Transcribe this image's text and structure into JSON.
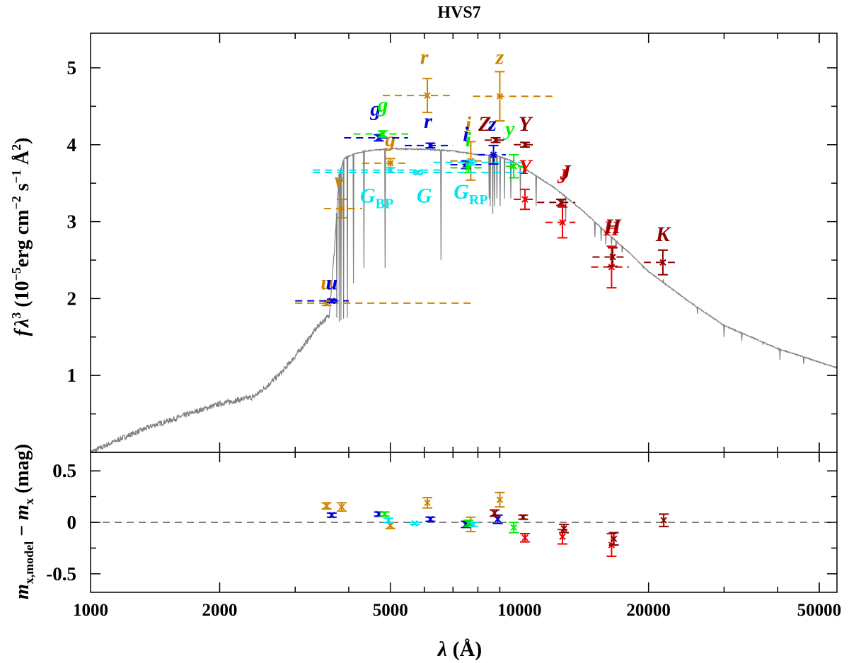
{
  "chart_data": [
    {
      "panel": "top",
      "type": "scatter",
      "title": "HVS7",
      "ylabel_parts": [
        "f",
        "λ",
        "3",
        " (10",
        "−5",
        "erg cm",
        "−2",
        " s",
        "−1",
        " Å",
        "2",
        ")"
      ],
      "xscale": "log",
      "xlim": [
        1000,
        55000
      ],
      "ylim": [
        0,
        5.45
      ],
      "yticks": [
        "1",
        "2",
        "3",
        "4",
        "5"
      ],
      "grid": false,
      "colors": {
        "sdss": "#cc8400",
        "panstarrs": "#0000dd",
        "vista": "#00ee00",
        "gaia": "#00e5ee",
        "ukidss": "#ee0000",
        "twomass": "#8b0000",
        "model": "#808080"
      },
      "model_spectrum": {
        "color": "#808080",
        "wavelength": [
          1000,
          1200,
          1400,
          1600,
          1800,
          2000,
          2200,
          2400,
          2600,
          2800,
          3000,
          3200,
          3400,
          3600,
          3700,
          3800,
          3900,
          4100,
          4400,
          5000,
          6000,
          7000,
          8000,
          8800,
          9500,
          10500,
          12000,
          14000,
          16000,
          18000,
          20000,
          25000,
          30000,
          40000,
          55000
        ],
        "flux": [
          0.0,
          0.2,
          0.35,
          0.45,
          0.55,
          0.63,
          0.68,
          0.72,
          0.88,
          1.05,
          1.25,
          1.45,
          1.65,
          1.78,
          2.6,
          3.62,
          3.82,
          3.88,
          3.92,
          3.95,
          3.94,
          3.92,
          3.87,
          3.86,
          3.8,
          3.66,
          3.45,
          3.15,
          2.85,
          2.6,
          2.35,
          1.95,
          1.65,
          1.35,
          1.1
        ],
        "absorption_lines": [
          [
            3750,
            1.75
          ],
          [
            3800,
            1.7
          ],
          [
            3835,
            1.72
          ],
          [
            3889,
            1.74
          ],
          [
            3970,
            1.75
          ],
          [
            4102,
            2.2
          ],
          [
            4340,
            2.4
          ],
          [
            4861,
            2.4
          ],
          [
            6563,
            2.5
          ],
          [
            8500,
            3.3
          ],
          [
            8545,
            3.2
          ],
          [
            8665,
            3.1
          ],
          [
            8750,
            3.2
          ],
          [
            8863,
            3.3
          ],
          [
            9015,
            3.2
          ],
          [
            9229,
            3.3
          ],
          [
            9546,
            3.3
          ],
          [
            10049,
            3.3
          ],
          [
            10938,
            3.2
          ],
          [
            12818,
            3.0
          ],
          [
            15000,
            2.8
          ],
          [
            15500,
            2.75
          ],
          [
            15900,
            2.7
          ],
          [
            16400,
            2.7
          ],
          [
            16800,
            2.65
          ],
          [
            17362,
            2.6
          ],
          [
            19450,
            2.4
          ],
          [
            21655,
            2.25
          ],
          [
            26000,
            1.8
          ],
          [
            30000,
            1.5
          ],
          [
            33000,
            1.45
          ],
          [
            37000,
            1.4
          ],
          [
            40500,
            1.2
          ],
          [
            46000,
            1.15
          ]
        ]
      },
      "photometry": [
        {
          "survey": "sdss",
          "band": "u",
          "wavelength": 3550,
          "flux": 1.94,
          "err": 0.03,
          "xmin": 3000,
          "xmax": 7800,
          "label": "u",
          "label_wl": 3550,
          "label_flux": 2.12
        },
        {
          "survey": "sdss",
          "band": "v",
          "wavelength": 3850,
          "flux": 3.17,
          "err": 0.12,
          "xmin": 3500,
          "xmax": 4300,
          "label": "v",
          "label_wl": 3800,
          "label_flux": 3.45
        },
        {
          "survey": "sdss",
          "band": "g",
          "wavelength": 5000,
          "flux": 3.76,
          "err": 0.06,
          "xmin": 4300,
          "xmax": 5500,
          "label": "g",
          "label_wl": 5000,
          "label_flux": 3.98
        },
        {
          "survey": "sdss",
          "band": "r",
          "wavelength": 6100,
          "flux": 4.64,
          "err": 0.22,
          "xmin": 4800,
          "xmax": 7000,
          "label": "r",
          "label_wl": 6000,
          "label_flux": 5.05
        },
        {
          "survey": "sdss",
          "band": "i",
          "wavelength": 7700,
          "flux": 3.79,
          "err": 0.25,
          "xmin": 6900,
          "xmax": 8300,
          "label": "i",
          "label_wl": 7600,
          "label_flux": 4.18
        },
        {
          "survey": "sdss",
          "band": "z",
          "wavelength": 9000,
          "flux": 4.63,
          "err": 0.32,
          "xmin": 7800,
          "xmax": 12000,
          "label": "z",
          "label_wl": 9000,
          "label_flux": 5.05
        },
        {
          "survey": "panstarrs",
          "band": "u",
          "wavelength": 3650,
          "flux": 1.97,
          "err": 0.02,
          "xmin": 3000,
          "xmax": 4000,
          "label": "u",
          "label_wl": 3650,
          "label_flux": 2.12
        },
        {
          "survey": "panstarrs",
          "band": "g",
          "wavelength": 4700,
          "flux": 4.09,
          "err": 0.04,
          "xmin": 3900,
          "xmax": 5500,
          "label": "g",
          "label_wl": 4620,
          "label_flux": 4.38
        },
        {
          "survey": "panstarrs",
          "band": "r",
          "wavelength": 6200,
          "flux": 3.99,
          "err": 0.03,
          "xmin": 5400,
          "xmax": 7000,
          "label": "r",
          "label_wl": 6120,
          "label_flux": 4.22
        },
        {
          "survey": "panstarrs",
          "band": "i",
          "wavelength": 7500,
          "flux": 3.74,
          "err": 0.05,
          "xmin": 6900,
          "xmax": 8300,
          "label": "i",
          "label_wl": 7500,
          "label_flux": 4.05
        },
        {
          "survey": "panstarrs",
          "band": "z",
          "wavelength": 8700,
          "flux": 3.87,
          "err": 0.12,
          "xmin": 8000,
          "xmax": 9300,
          "label": "z",
          "label_wl": 8650,
          "label_flux": 4.18
        },
        {
          "survey": "vista",
          "band": "g",
          "wavelength": 4800,
          "flux": 4.14,
          "err": 0.04,
          "xmin": 4100,
          "xmax": 5500,
          "label": "g",
          "label_wl": 4800,
          "label_flux": 4.43
        },
        {
          "survey": "vista",
          "band": "i",
          "wavelength": 7600,
          "flux": 3.7,
          "err": 0.06,
          "xmin": 6900,
          "xmax": 8300,
          "label": "i",
          "label_wl": 7600,
          "label_flux": 3.98
        },
        {
          "survey": "vista",
          "band": "y",
          "wavelength": 9700,
          "flux": 3.72,
          "err": 0.15,
          "xmin": 9300,
          "xmax": 10300,
          "label": "y",
          "label_wl": 9500,
          "label_flux": 4.12
        },
        {
          "survey": "gaia",
          "band": "G_BP",
          "wavelength": 5000,
          "flux": 3.67,
          "err": 0.03,
          "xmin": 3300,
          "xmax": 6600,
          "label": "G",
          "sub": "BP",
          "label_wl": 4650,
          "label_flux": 3.25
        },
        {
          "survey": "gaia",
          "band": "G",
          "wavelength": 5800,
          "flux": 3.64,
          "err": 0.02,
          "xmin": 3300,
          "xmax": 10500,
          "label": "G",
          "sub": "",
          "label_wl": 6000,
          "label_flux": 3.25
        },
        {
          "survey": "gaia",
          "band": "G_RP",
          "wavelength": 7700,
          "flux": 3.77,
          "err": 0.03,
          "xmin": 6300,
          "xmax": 10500,
          "label": "G",
          "sub": "RP",
          "label_wl": 7700,
          "label_flux": 3.3
        },
        {
          "survey": "ukidss",
          "band": "Y",
          "wavelength": 10300,
          "flux": 3.29,
          "err": 0.13,
          "xmin": 9700,
          "xmax": 11000,
          "label": "Y",
          "label_wl": 10300,
          "label_flux": 3.62
        },
        {
          "survey": "ukidss",
          "band": "J",
          "wavelength": 12600,
          "flux": 2.99,
          "err": 0.2,
          "xmin": 11500,
          "xmax": 13500,
          "label": "J",
          "label_wl": 12600,
          "label_flux": 3.5
        },
        {
          "survey": "ukidss",
          "band": "H",
          "wavelength": 16400,
          "flux": 2.41,
          "err": 0.27,
          "xmin": 14700,
          "xmax": 18000,
          "label": "H",
          "label_wl": 16400,
          "label_flux": 2.82
        },
        {
          "survey": "twomass",
          "band": "Z",
          "wavelength": 8800,
          "flux": 4.06,
          "err": 0.03,
          "xmin": 8300,
          "xmax": 9300,
          "label": "Z",
          "label_wl": 8300,
          "label_flux": 4.18
        },
        {
          "survey": "twomass",
          "band": "Y",
          "wavelength": 10300,
          "flux": 4.0,
          "err": 0.03,
          "xmin": 9700,
          "xmax": 10900,
          "label": "Y",
          "label_wl": 10300,
          "label_flux": 4.18
        },
        {
          "survey": "twomass",
          "band": "J",
          "wavelength": 12500,
          "flux": 3.25,
          "err": 0.04,
          "xmin": 11000,
          "xmax": 13500,
          "label": "J",
          "label_wl": 12800,
          "label_flux": 3.55
        },
        {
          "survey": "twomass",
          "band": "H",
          "wavelength": 16500,
          "flux": 2.54,
          "err": 0.12,
          "xmin": 14800,
          "xmax": 17800,
          "label": "H",
          "label_wl": 16500,
          "label_flux": 2.85
        },
        {
          "survey": "twomass",
          "band": "K",
          "wavelength": 21600,
          "flux": 2.47,
          "err": 0.16,
          "xmin": 19500,
          "xmax": 23600,
          "label": "K",
          "label_wl": 21600,
          "label_flux": 2.75
        }
      ]
    },
    {
      "panel": "bottom",
      "type": "scatter",
      "ylabel_parts": [
        "m",
        "x,model",
        " − ",
        "m",
        "x",
        " (mag)"
      ],
      "xlabel_parts": [
        "λ",
        " (Å)"
      ],
      "xscale": "log",
      "xlim": [
        1000,
        55000
      ],
      "ylim": [
        -0.68,
        0.68
      ],
      "xticks": [
        [
          "1000",
          1000
        ],
        [
          "2000",
          2000
        ],
        [
          "5000",
          5000
        ],
        [
          "10000",
          10000
        ],
        [
          "20000",
          20000
        ],
        [
          "50000",
          50000
        ]
      ],
      "yticks": [
        [
          "0.5",
          0.5
        ],
        [
          "0",
          0
        ],
        [
          "-0.5",
          -0.5
        ]
      ],
      "zero_line": 0,
      "residuals": [
        {
          "survey": "sdss",
          "band": "u",
          "wavelength": 3550,
          "value": 0.16,
          "err": 0.03
        },
        {
          "survey": "sdss",
          "band": "v",
          "wavelength": 3850,
          "value": 0.15,
          "err": 0.04
        },
        {
          "survey": "sdss",
          "band": "g",
          "wavelength": 5000,
          "value": -0.03,
          "err": 0.03
        },
        {
          "survey": "sdss",
          "band": "r",
          "wavelength": 6100,
          "value": 0.19,
          "err": 0.05
        },
        {
          "survey": "sdss",
          "band": "i",
          "wavelength": 7700,
          "value": -0.02,
          "err": 0.07
        },
        {
          "survey": "sdss",
          "band": "z",
          "wavelength": 9000,
          "value": 0.22,
          "err": 0.07
        },
        {
          "survey": "panstarrs",
          "band": "u",
          "wavelength": 3650,
          "value": 0.07,
          "err": 0.02
        },
        {
          "survey": "panstarrs",
          "band": "g",
          "wavelength": 4700,
          "value": 0.08,
          "err": 0.02
        },
        {
          "survey": "panstarrs",
          "band": "r",
          "wavelength": 6200,
          "value": 0.03,
          "err": 0.02
        },
        {
          "survey": "panstarrs",
          "band": "i",
          "wavelength": 7500,
          "value": -0.02,
          "err": 0.03
        },
        {
          "survey": "panstarrs",
          "band": "z",
          "wavelength": 8900,
          "value": 0.03,
          "err": 0.04
        },
        {
          "survey": "vista",
          "band": "g",
          "wavelength": 4850,
          "value": 0.08,
          "err": 0.02
        },
        {
          "survey": "vista",
          "band": "i",
          "wavelength": 7600,
          "value": -0.01,
          "err": 0.03
        },
        {
          "survey": "vista",
          "band": "y",
          "wavelength": 9700,
          "value": -0.05,
          "err": 0.05
        },
        {
          "survey": "gaia",
          "band": "G_BP",
          "wavelength": 4950,
          "value": 0.02,
          "err": 0.02
        },
        {
          "survey": "gaia",
          "band": "G",
          "wavelength": 5700,
          "value": -0.01,
          "err": 0.01
        },
        {
          "survey": "gaia",
          "band": "G_RP",
          "wavelength": 7800,
          "value": -0.02,
          "err": 0.02
        },
        {
          "survey": "ukidss",
          "band": "Y",
          "wavelength": 10300,
          "value": -0.15,
          "err": 0.04
        },
        {
          "survey": "ukidss",
          "band": "J",
          "wavelength": 12600,
          "value": -0.14,
          "err": 0.07
        },
        {
          "survey": "ukidss",
          "band": "H",
          "wavelength": 16400,
          "value": -0.22,
          "err": 0.11
        },
        {
          "survey": "twomass",
          "band": "Z",
          "wavelength": 8750,
          "value": 0.09,
          "err": 0.03
        },
        {
          "survey": "twomass",
          "band": "Y",
          "wavelength": 10200,
          "value": 0.05,
          "err": 0.02
        },
        {
          "survey": "twomass",
          "band": "J",
          "wavelength": 12700,
          "value": -0.06,
          "err": 0.04
        },
        {
          "survey": "twomass",
          "band": "H",
          "wavelength": 16600,
          "value": -0.16,
          "err": 0.06
        },
        {
          "survey": "twomass",
          "band": "K",
          "wavelength": 21700,
          "value": 0.02,
          "err": 0.06
        }
      ]
    }
  ]
}
